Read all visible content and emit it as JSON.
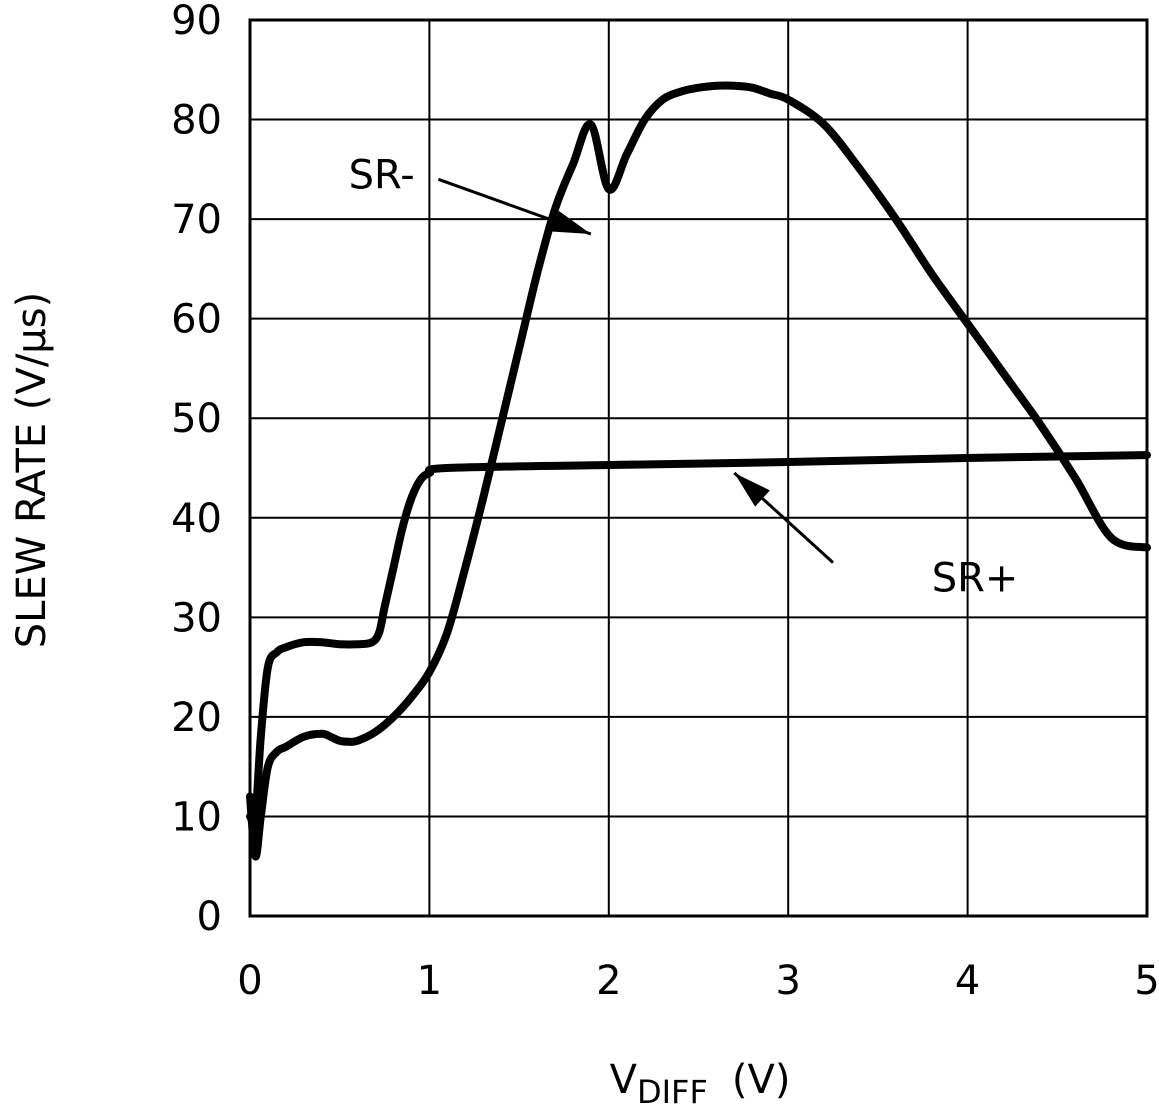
{
  "chart_data": {
    "type": "line",
    "title": "",
    "xlabel_main": "V",
    "xlabel_sub": "DIFF",
    "xlabel_unit": "(V)",
    "ylabel": "SLEW RATE (V/μs)",
    "xlim": [
      0,
      5
    ],
    "ylim": [
      0,
      90
    ],
    "x_ticks": [
      0,
      1,
      2,
      3,
      4,
      5
    ],
    "y_ticks": [
      0,
      10,
      20,
      30,
      40,
      50,
      60,
      70,
      80,
      90
    ],
    "grid": true,
    "series": [
      {
        "name": "SR+",
        "x": [
          0.0,
          0.03,
          0.06,
          0.1,
          0.15,
          0.2,
          0.3,
          0.4,
          0.5,
          0.6,
          0.68,
          0.72,
          0.75,
          0.8,
          0.85,
          0.9,
          0.95,
          1.0,
          1.1,
          2.0,
          3.0,
          4.0,
          5.0
        ],
        "y": [
          10,
          10,
          18,
          25,
          26.5,
          27,
          27.5,
          27.5,
          27.3,
          27.3,
          27.5,
          28.5,
          31,
          35,
          39,
          42,
          43.8,
          44.5,
          45,
          45.3,
          45.6,
          46,
          46.3
        ]
      },
      {
        "name": "SR-",
        "x": [
          0.0,
          0.03,
          0.06,
          0.1,
          0.15,
          0.2,
          0.3,
          0.4,
          0.45,
          0.5,
          0.55,
          0.6,
          0.7,
          0.8,
          0.9,
          1.0,
          1.1,
          1.2,
          1.3,
          1.4,
          1.5,
          1.6,
          1.7,
          1.8,
          1.9,
          2.0,
          2.1,
          2.2,
          2.3,
          2.4,
          2.5,
          2.6,
          2.7,
          2.8,
          2.9,
          3.0,
          3.2,
          3.4,
          3.6,
          3.8,
          4.0,
          4.2,
          4.4,
          4.6,
          4.8,
          5.0
        ],
        "y": [
          12,
          6,
          10,
          15,
          16.5,
          17,
          18,
          18.3,
          18,
          17.6,
          17.5,
          17.6,
          18.5,
          20,
          22,
          24.5,
          28.5,
          35,
          42,
          49.5,
          57,
          64.5,
          71,
          75.5,
          79.5,
          73,
          76.5,
          80,
          82,
          82.8,
          83.2,
          83.4,
          83.4,
          83.2,
          82.6,
          82,
          79.5,
          75,
          70,
          64.5,
          59.5,
          54.5,
          49.5,
          44,
          38,
          37
        ]
      }
    ],
    "annotations": [
      {
        "text": "SR-",
        "series": "SR-",
        "text_at": [
          0.55,
          74.5
        ],
        "arrow_from": [
          1.05,
          74
        ],
        "arrow_to": [
          1.9,
          68.5
        ]
      },
      {
        "text": "SR+",
        "series": "SR+",
        "text_at": [
          3.8,
          34
        ],
        "arrow_from": [
          3.25,
          35.5
        ],
        "arrow_to": [
          2.7,
          44.5
        ]
      }
    ]
  }
}
